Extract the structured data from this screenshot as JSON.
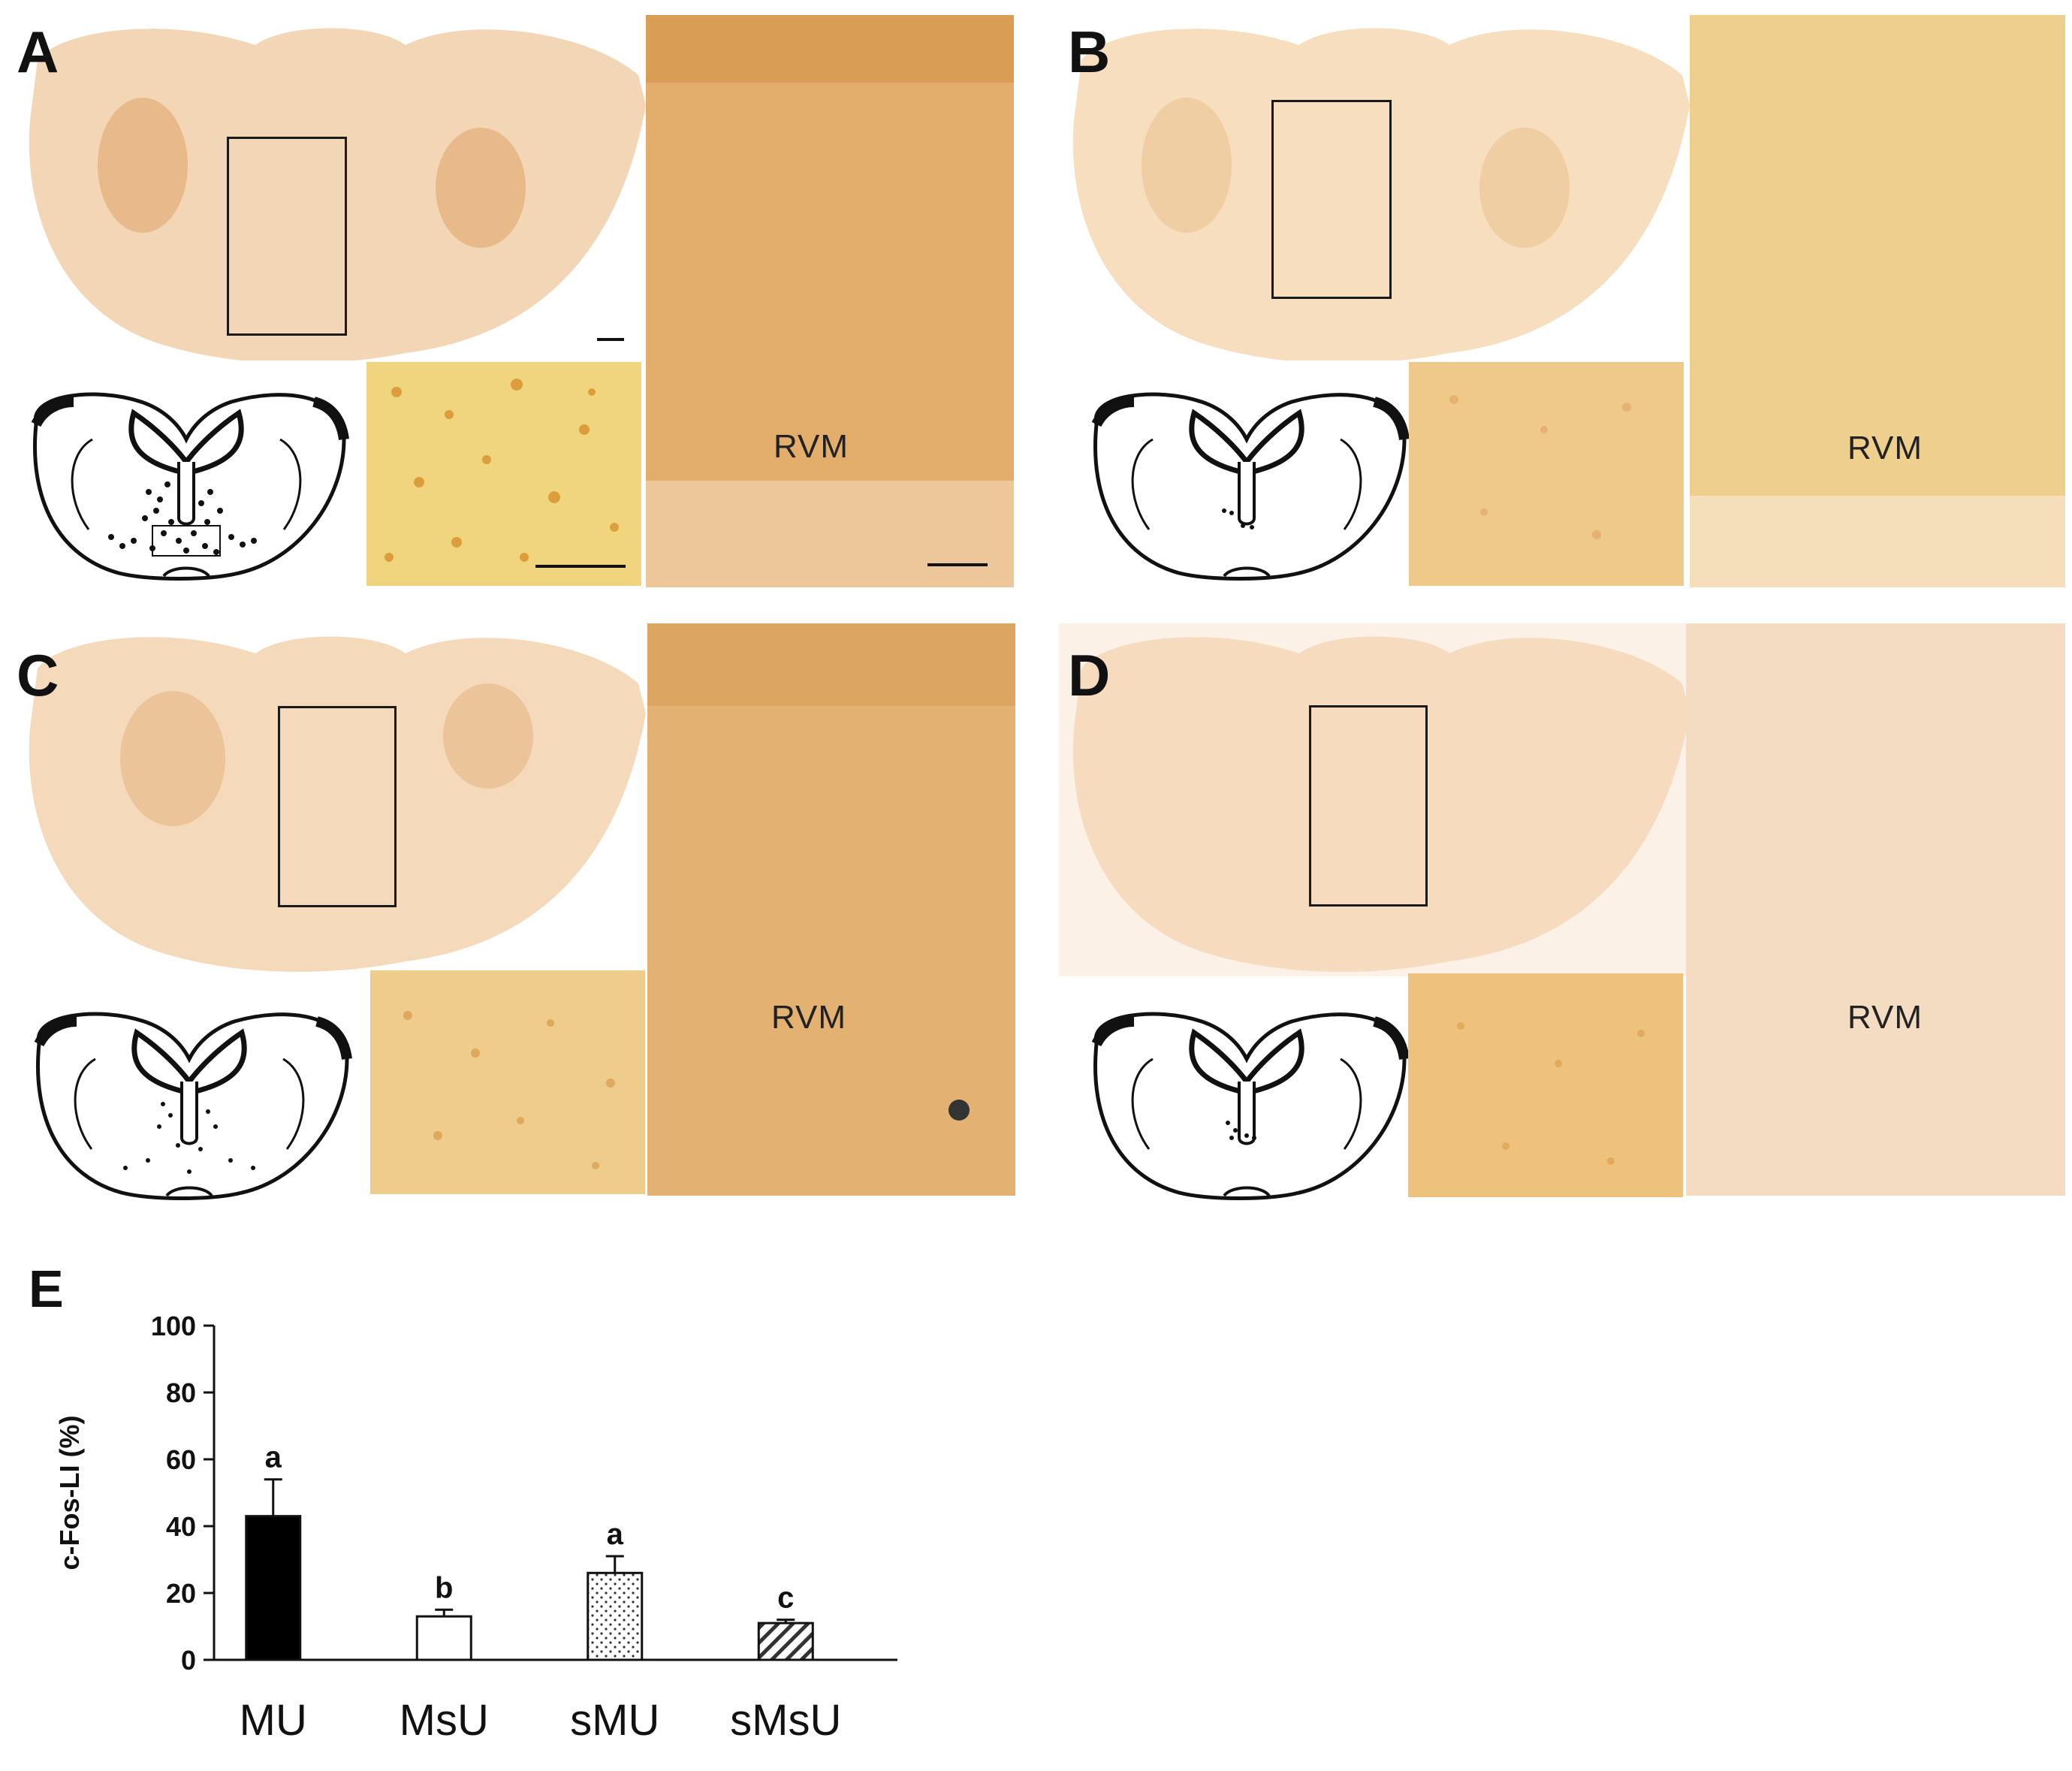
{
  "panels": [
    {
      "letter": "A",
      "region_label": "RVM",
      "tissue_color": "#e9b57a",
      "micro_color": "#e5b25a",
      "rvm_color": "#dc9f5c"
    },
    {
      "letter": "B",
      "region_label": "RVM",
      "tissue_color": "#f0c894",
      "micro_color": "#f0c588",
      "rvm_color": "#eecd87"
    },
    {
      "letter": "C",
      "region_label": "RVM",
      "tissue_color": "#ecc08c",
      "micro_color": "#ebc486",
      "rvm_color": "#e3b172"
    },
    {
      "letter": "D",
      "region_label": "RVM",
      "tissue_color": "#f3d2ad",
      "micro_color": "#edc27c",
      "rvm_color": "#f3dcc1"
    }
  ],
  "chart_panel_letter": "E",
  "chart_data": {
    "type": "bar",
    "categories": [
      "MU",
      "MsU",
      "sMU",
      "sMsU"
    ],
    "values": [
      43,
      13,
      26,
      11
    ],
    "errors": [
      11,
      2,
      5,
      1
    ],
    "significance_letters": [
      "a",
      "b",
      "a",
      "c"
    ],
    "bar_fills": [
      "solid-black",
      "white",
      "dotted",
      "diagonal-hatch"
    ],
    "ylabel": "c-Fos-LI (%)",
    "xlabel": "",
    "ylim": [
      0,
      100
    ],
    "yticks": [
      0,
      20,
      40,
      60,
      80,
      100
    ],
    "grid": false
  }
}
